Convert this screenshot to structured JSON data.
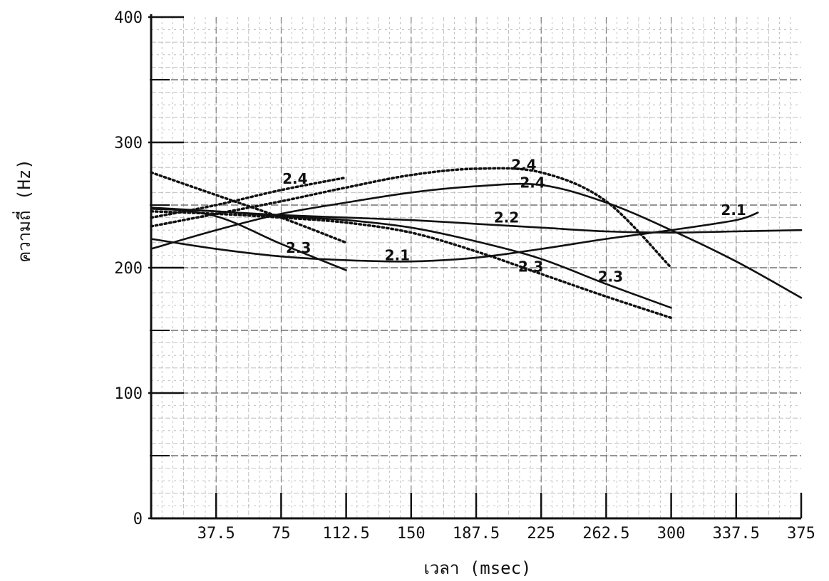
{
  "chart_data": {
    "type": "line",
    "title": "",
    "xlabel": "เวลา (msec)",
    "ylabel": "ความถี่ (Hz)",
    "xlim": [
      0,
      375
    ],
    "ylim": [
      0,
      400
    ],
    "x_ticks": [
      "37.5",
      "75",
      "112.5",
      "150",
      "187.5",
      "225",
      "262.5",
      "300",
      "337.5",
      "375"
    ],
    "y_ticks": [
      "0",
      "100",
      "200",
      "300",
      "400"
    ],
    "grid": true,
    "series": [
      {
        "name": "2.1",
        "style": "solid",
        "x": [
          0,
          37.5,
          75,
          112.5,
          150,
          187.5,
          225,
          262.5,
          300,
          337.5,
          350
        ],
        "y": [
          223,
          215,
          209,
          206,
          205,
          208,
          215,
          223,
          230,
          238,
          244
        ]
      },
      {
        "name": "2.2",
        "style": "solid",
        "x": [
          0,
          37.5,
          75,
          112.5,
          150,
          187.5,
          225,
          262.5,
          300,
          337.5,
          375
        ],
        "y": [
          248,
          245,
          242,
          240,
          238,
          235,
          232,
          229,
          228,
          229,
          230
        ]
      },
      {
        "name": "2.3",
        "style": "solid",
        "x": [
          0,
          37.5,
          75,
          112.5,
          150,
          187.5,
          225,
          262.5,
          300
        ],
        "y": [
          247,
          245,
          241,
          238,
          232,
          221,
          207,
          187,
          168
        ]
      },
      {
        "name": "2.4",
        "style": "solid",
        "x": [
          0,
          37.5,
          75,
          112.5,
          150,
          187.5,
          225,
          262.5,
          300,
          337.5,
          375
        ],
        "y": [
          215,
          230,
          243,
          252,
          260,
          265,
          266,
          252,
          230,
          205,
          176
        ]
      },
      {
        "name": "2.3",
        "style": "dotted",
        "x": [
          0,
          37.5,
          75,
          112.5,
          150,
          187.5,
          225,
          262.5,
          300
        ],
        "y": [
          245,
          243,
          240,
          236,
          228,
          213,
          195,
          177,
          160
        ]
      },
      {
        "name": "2.4",
        "style": "dotted",
        "x": [
          0,
          37.5,
          75,
          112.5,
          150,
          187.5,
          225,
          262.5,
          300
        ],
        "y": [
          233,
          243,
          253,
          264,
          274,
          279,
          276,
          253,
          200
        ]
      },
      {
        "name": "2.4",
        "style": "dotted",
        "x": [
          0,
          37.5,
          75,
          112.5
        ],
        "y": [
          240,
          250,
          262,
          272
        ]
      },
      {
        "name": "2.3",
        "style": "dotted",
        "x": [
          0,
          37.5,
          75,
          112.5
        ],
        "y": [
          276,
          258,
          240,
          220
        ]
      },
      {
        "name": "",
        "style": "solid",
        "x": [
          0,
          37.5,
          75,
          112.5
        ],
        "y": [
          248,
          241,
          219,
          198
        ]
      }
    ],
    "annotations": [
      {
        "text": "2.4",
        "x": 83,
        "y": 267
      },
      {
        "text": "2.3",
        "x": 85,
        "y": 212
      },
      {
        "text": "2.1",
        "x": 142,
        "y": 206
      },
      {
        "text": "2.2",
        "x": 205,
        "y": 236
      },
      {
        "text": "2.4",
        "x": 215,
        "y": 278
      },
      {
        "text": "2.4",
        "x": 220,
        "y": 264
      },
      {
        "text": "2.3",
        "x": 219,
        "y": 197
      },
      {
        "text": "2.3",
        "x": 265,
        "y": 189
      },
      {
        "text": "2.1",
        "x": 336,
        "y": 242
      }
    ]
  }
}
